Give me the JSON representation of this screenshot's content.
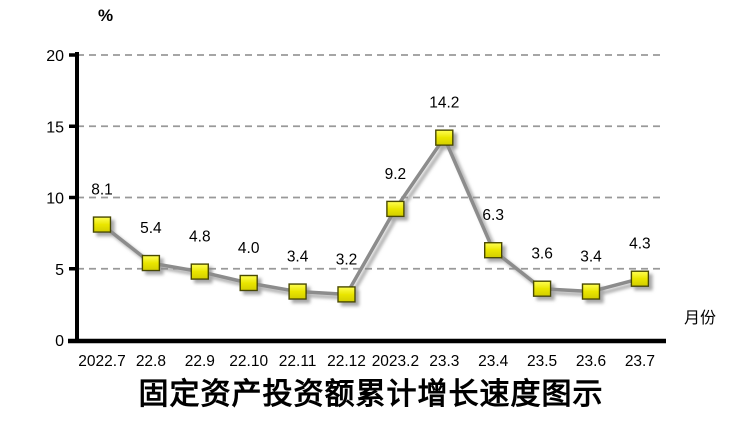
{
  "chart_data": {
    "type": "line",
    "title": "固定资产投资额累计增长速度图示",
    "unit_label": "%",
    "xlabel": "月份",
    "categories": [
      "2022.7",
      "22.8",
      "22.9",
      "22.10",
      "22.11",
      "22.12",
      "2023.2",
      "23.3",
      "23.4",
      "23.5",
      "23.6",
      "23.7"
    ],
    "values": [
      8.1,
      5.4,
      4.8,
      4.0,
      3.4,
      3.2,
      9.2,
      14.2,
      6.3,
      3.6,
      3.4,
      4.3
    ],
    "data_labels": [
      "8.1",
      "5.4",
      "4.8",
      "4.0",
      "3.4",
      "3.2",
      "9.2",
      "14.2",
      "6.3",
      "3.6",
      "3.4",
      "4.3"
    ],
    "ylim": [
      0,
      20
    ],
    "yticks": [
      0,
      5,
      10,
      15,
      20
    ],
    "grid": "horizontal-dashed",
    "legend": "none",
    "colors": {
      "line": "#8c8c8c",
      "marker_fill_top": "#ffff55",
      "marker_fill_bottom": "#d2cd00",
      "marker_border": "#4a4a00",
      "gridline": "#999999",
      "axis": "#000000",
      "shadow": "#8a8a8a"
    }
  }
}
